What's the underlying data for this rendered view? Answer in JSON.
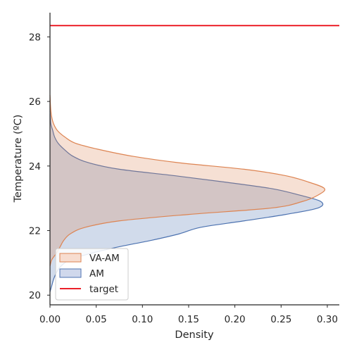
{
  "chart_data": {
    "type": "area",
    "orientation": "horizontal-density",
    "xlabel": "Density",
    "ylabel": "Temperature (ºC)",
    "xlim": [
      0.0,
      0.313
    ],
    "ylim": [
      19.7,
      28.75
    ],
    "xticks": [
      0.0,
      0.05,
      0.1,
      0.15,
      0.2,
      0.25,
      0.3
    ],
    "xtick_labels": [
      "0.00",
      "0.05",
      "0.10",
      "0.15",
      "0.20",
      "0.25",
      "0.30"
    ],
    "yticks": [
      20,
      22,
      24,
      26,
      28
    ],
    "ytick_labels": [
      "20",
      "22",
      "24",
      "26",
      "28"
    ],
    "grid": false,
    "legend_position": "lower-left",
    "series": [
      {
        "name": "VA-AM",
        "kind": "kde",
        "color": "#dd8452",
        "fill": "#f7ddd0",
        "temperature": [
          20.9,
          21.1,
          21.3,
          21.5,
          21.7,
          21.9,
          22.1,
          22.3,
          22.5,
          22.7,
          22.9,
          23.1,
          23.3,
          23.5,
          23.7,
          23.9,
          24.1,
          24.3,
          24.5,
          24.7,
          24.9,
          25.1,
          25.3,
          25.5,
          25.7,
          25.9,
          26.1,
          26.2
        ],
        "density": [
          0.0,
          0.002,
          0.007,
          0.011,
          0.015,
          0.022,
          0.038,
          0.075,
          0.15,
          0.24,
          0.273,
          0.29,
          0.297,
          0.28,
          0.255,
          0.21,
          0.14,
          0.09,
          0.055,
          0.028,
          0.016,
          0.008,
          0.004,
          0.002,
          0.001,
          0.0005,
          0.0002,
          0.0
        ]
      },
      {
        "name": "AM",
        "kind": "kde",
        "color": "#4c72b0",
        "fill": "#d0d8ec",
        "temperature": [
          20.1,
          20.3,
          20.5,
          20.7,
          20.9,
          21.1,
          21.3,
          21.5,
          21.7,
          21.9,
          22.1,
          22.3,
          22.5,
          22.7,
          22.9,
          23.1,
          23.3,
          23.5,
          23.7,
          23.9,
          24.1,
          24.3,
          24.5,
          24.7,
          24.9,
          25.1,
          25.3,
          25.5,
          25.7
        ],
        "density": [
          0.0,
          0.002,
          0.004,
          0.007,
          0.012,
          0.022,
          0.045,
          0.075,
          0.11,
          0.14,
          0.163,
          0.21,
          0.255,
          0.29,
          0.293,
          0.27,
          0.24,
          0.19,
          0.135,
          0.075,
          0.042,
          0.025,
          0.016,
          0.009,
          0.005,
          0.003,
          0.001,
          0.0005,
          0.0
        ]
      },
      {
        "name": "target",
        "kind": "hline",
        "color": "#e8000b",
        "value": 28.35
      }
    ]
  }
}
